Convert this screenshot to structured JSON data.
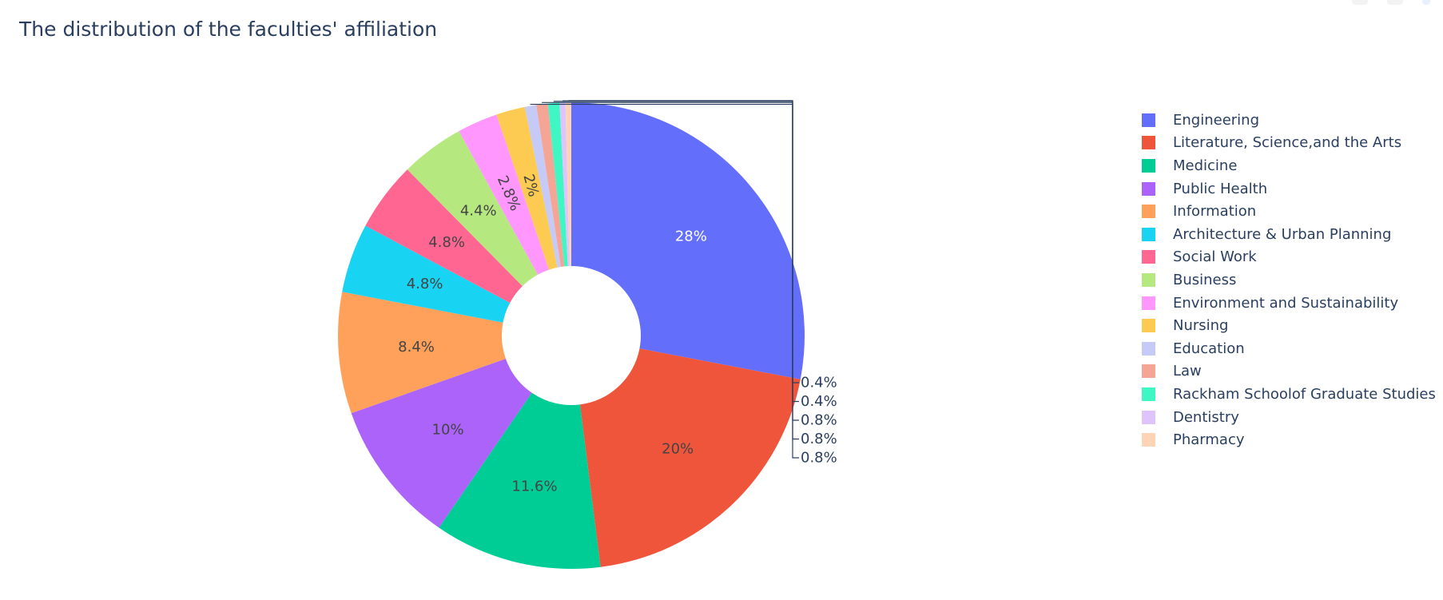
{
  "title": "The distribution of the faculties' affiliation",
  "chart_data": {
    "type": "pie",
    "hole": true,
    "title": "The distribution of the faculties' affiliation",
    "legend_position": "right",
    "slices": [
      {
        "label": "Engineering",
        "value": 28,
        "text": "28%",
        "color": "#636efa",
        "text_color": "#ffffff",
        "label_mode": "inside"
      },
      {
        "label": "Literature, Science,and the Arts",
        "value": 20,
        "text": "20%",
        "color": "#EF553B",
        "text_color": "#444444",
        "label_mode": "inside"
      },
      {
        "label": "Medicine",
        "value": 11.6,
        "text": "11.6%",
        "color": "#00cc96",
        "text_color": "#444444",
        "label_mode": "inside"
      },
      {
        "label": "Public Health",
        "value": 10,
        "text": "10%",
        "color": "#ab63fa",
        "text_color": "#444444",
        "label_mode": "inside"
      },
      {
        "label": "Information",
        "value": 8.4,
        "text": "8.4%",
        "color": "#FFA15A",
        "text_color": "#444444",
        "label_mode": "inside"
      },
      {
        "label": "Architecture & Urban Planning",
        "value": 4.8,
        "text": "4.8%",
        "color": "#19d3f3",
        "text_color": "#444444",
        "label_mode": "inside"
      },
      {
        "label": "Social Work",
        "value": 4.8,
        "text": "4.8%",
        "color": "#FF6692",
        "text_color": "#444444",
        "label_mode": "inside"
      },
      {
        "label": "Business",
        "value": 4.4,
        "text": "4.4%",
        "color": "#B6E880",
        "text_color": "#444444",
        "label_mode": "inside"
      },
      {
        "label": "Environment and Sustainability",
        "value": 2.8,
        "text": "2.8%",
        "color": "#FF97FF",
        "text_color": "#444444",
        "label_mode": "inside"
      },
      {
        "label": "Nursing",
        "value": 2,
        "text": "2%",
        "color": "#FECB52",
        "text_color": "#444444",
        "label_mode": "inside"
      },
      {
        "label": "Education",
        "value": 0.8,
        "text": "0.8%",
        "color": "#c6caf6",
        "text_color": "#2a3f5f",
        "label_mode": "outside"
      },
      {
        "label": "Law",
        "value": 0.8,
        "text": "0.8%",
        "color": "#f4a596",
        "text_color": "#2a3f5f",
        "label_mode": "outside"
      },
      {
        "label": "Rackham Schoolof Graduate Studies",
        "value": 0.8,
        "text": "0.8%",
        "color": "#40f7c4",
        "text_color": "#2a3f5f",
        "label_mode": "outside"
      },
      {
        "label": "Dentistry",
        "value": 0.4,
        "text": "0.4%",
        "color": "#dfc3fc",
        "text_color": "#2a3f5f",
        "label_mode": "outside"
      },
      {
        "label": "Pharmacy",
        "value": 0.4,
        "text": "0.4%",
        "color": "#ffd3b6",
        "text_color": "#2a3f5f",
        "label_mode": "outside"
      }
    ]
  }
}
